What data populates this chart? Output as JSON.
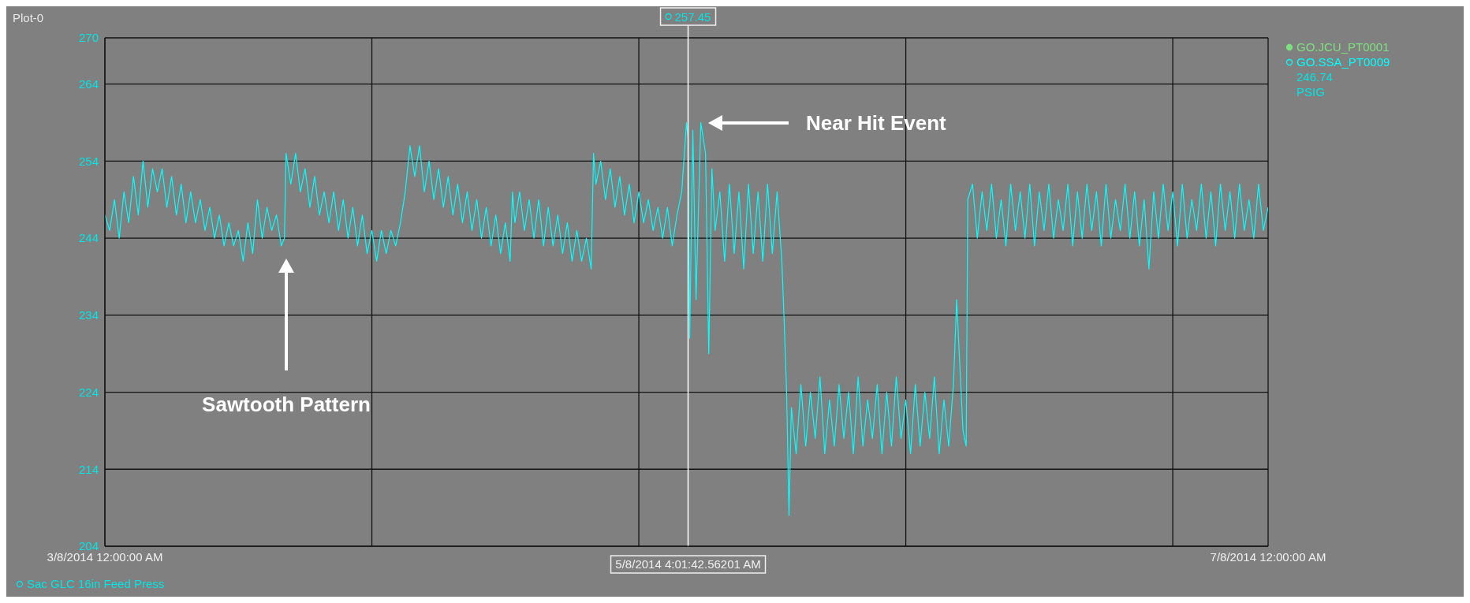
{
  "chart_data": {
    "type": "line",
    "title": "Plot-0",
    "ylabel": "PSIG",
    "annotations": [
      "257.45",
      "246.74",
      "Sac GLC 16in Feed Press",
      "Sawtooth Pattern",
      "Near Hit Event",
      "GO.JCU_PT0001"
    ],
    "x": [
      "2014-03-08T00:00",
      "2014-03-08T12:00",
      "2014-03-09T00:00",
      "2014-03-09T12:00",
      "2014-03-10T00:00",
      "2014-03-10T12:00",
      "2014-03-11T00:00",
      "2014-03-11T12:00",
      "2014-03-12T00:00",
      "2014-03-12T12:00",
      "2014-03-13T00:00",
      "2014-03-13T12:00",
      "2014-03-14T00:00",
      "2014-03-14T12:00",
      "2014-03-15T00:00",
      "2014-03-15T12:00",
      "2014-03-16T00:00",
      "2014-03-16T12:00",
      "2014-03-17T00:00",
      "2014-03-17T12:00",
      "2014-03-18T00:00",
      "2014-03-18T12:00",
      "2014-03-19T00:00",
      "2014-03-19T12:00",
      "2014-03-20T00:00",
      "2014-03-20T12:00",
      "2014-03-21T00:00",
      "2014-03-21T12:00",
      "2014-03-22T00:00",
      "2014-03-22T12:00",
      "2014-03-23T00:00",
      "2014-03-23T12:00",
      "2014-03-24T00:00",
      "2014-03-24T12:00",
      "2014-03-25T00:00",
      "2014-03-25T12:00",
      "2014-03-26T00:00",
      "2014-03-26T12:00",
      "2014-03-26T20:00",
      "2014-03-27T00:00",
      "2014-03-27T12:00",
      "2014-03-28T00:00",
      "2014-03-28T12:00",
      "2014-03-29T00:00",
      "2014-03-29T12:00",
      "2014-03-30T00:00",
      "2014-03-30T12:00",
      "2014-03-31T00:00",
      "2014-03-31T12:00",
      "2014-04-01T00:00",
      "2014-04-01T12:00",
      "2014-04-02T00:00",
      "2014-04-02T12:00",
      "2014-04-03T00:00",
      "2014-04-03T12:00",
      "2014-04-04T00:00",
      "2014-04-04T12:00",
      "2014-04-05T00:00",
      "2014-04-05T12:00",
      "2014-04-06T00:00",
      "2014-04-06T12:00",
      "2014-04-07T00:00",
      "2014-04-07T12:00",
      "2014-04-08T00:00",
      "2014-04-08T12:00",
      "2014-04-09T00:00",
      "2014-04-09T12:00",
      "2014-04-10T00:00",
      "2014-04-10T12:00",
      "2014-04-11T00:00",
      "2014-04-11T12:00",
      "2014-04-12T00:00",
      "2014-04-12T12:00",
      "2014-04-13T00:00",
      "2014-04-13T12:00",
      "2014-04-14T00:00",
      "2014-04-14T12:00",
      "2014-04-15T00:00",
      "2014-04-15T12:00",
      "2014-04-16T00:00",
      "2014-04-16T12:00",
      "2014-04-17T00:00",
      "2014-04-17T12:00",
      "2014-04-18T00:00",
      "2014-04-18T12:00",
      "2014-04-19T00:00",
      "2014-04-19T12:00",
      "2014-04-19T18:00",
      "2014-04-20T00:00",
      "2014-04-20T12:00",
      "2014-04-21T00:00",
      "2014-04-21T12:00",
      "2014-04-22T00:00",
      "2014-04-22T12:00",
      "2014-04-23T00:00",
      "2014-04-23T12:00",
      "2014-04-24T00:00",
      "2014-04-24T12:00",
      "2014-04-25T00:00",
      "2014-04-25T12:00",
      "2014-04-26T00:00",
      "2014-04-26T12:00",
      "2014-04-27T00:00",
      "2014-04-27T12:00",
      "2014-04-28T00:00",
      "2014-04-28T06:00",
      "2014-04-28T12:00",
      "2014-04-29T00:00",
      "2014-04-29T12:00",
      "2014-04-30T00:00",
      "2014-04-30T12:00",
      "2014-05-01T00:00",
      "2014-05-01T12:00",
      "2014-05-02T00:00",
      "2014-05-02T12:00",
      "2014-05-03T00:00",
      "2014-05-03T12:00",
      "2014-05-04T00:00",
      "2014-05-04T12:00",
      "2014-05-05T00:00",
      "2014-05-05T12:00",
      "2014-05-06T00:00",
      "2014-05-06T12:00",
      "2014-05-07T00:00",
      "2014-05-07T12:00",
      "2014-05-08T00:00",
      "2014-05-08T04:00",
      "2014-05-08T08:00",
      "2014-05-08T16:00",
      "2014-05-09T00:00",
      "2014-05-09T12:00",
      "2014-05-10T00:00",
      "2014-05-10T08:00",
      "2014-05-10T16:00",
      "2014-05-11T00:00",
      "2014-05-11T12:00",
      "2014-05-12T00:00",
      "2014-05-12T12:00",
      "2014-05-13T00:00",
      "2014-05-13T12:00",
      "2014-05-14T00:00",
      "2014-05-14T12:00",
      "2014-05-15T00:00",
      "2014-05-15T12:00",
      "2014-05-16T00:00",
      "2014-05-16T12:00",
      "2014-05-17T00:00",
      "2014-05-17T12:00",
      "2014-05-18T00:00",
      "2014-05-18T06:00",
      "2014-05-18T12:00",
      "2014-05-18T18:00",
      "2014-05-19T00:00",
      "2014-05-19T12:00",
      "2014-05-20T00:00",
      "2014-05-20T12:00",
      "2014-05-21T00:00",
      "2014-05-21T12:00",
      "2014-05-22T00:00",
      "2014-05-22T12:00",
      "2014-05-23T00:00",
      "2014-05-23T12:00",
      "2014-05-24T00:00",
      "2014-05-24T12:00",
      "2014-05-25T00:00",
      "2014-05-25T12:00",
      "2014-05-26T00:00",
      "2014-05-26T12:00",
      "2014-05-27T00:00",
      "2014-05-27T12:00",
      "2014-05-28T00:00",
      "2014-05-28T12:00",
      "2014-05-29T00:00",
      "2014-05-29T12:00",
      "2014-05-30T00:00",
      "2014-05-30T12:00",
      "2014-05-31T00:00",
      "2014-05-31T12:00",
      "2014-06-01T00:00",
      "2014-06-01T12:00",
      "2014-06-02T00:00",
      "2014-06-02T12:00",
      "2014-06-03T00:00",
      "2014-06-03T12:00",
      "2014-06-04T00:00",
      "2014-06-04T12:00",
      "2014-06-05T00:00",
      "2014-06-05T08:00",
      "2014-06-06T00:00",
      "2014-06-06T08:00",
      "2014-06-06T12:00",
      "2014-06-07T00:00",
      "2014-06-07T12:00",
      "2014-06-08T00:00",
      "2014-06-08T12:00",
      "2014-06-09T00:00",
      "2014-06-09T12:00",
      "2014-06-10T00:00",
      "2014-06-10T12:00",
      "2014-06-11T00:00",
      "2014-06-11T12:00",
      "2014-06-12T00:00",
      "2014-06-12T12:00",
      "2014-06-13T00:00",
      "2014-06-13T12:00",
      "2014-06-14T00:00",
      "2014-06-14T12:00",
      "2014-06-15T00:00",
      "2014-06-15T12:00",
      "2014-06-16T00:00",
      "2014-06-16T12:00",
      "2014-06-17T00:00",
      "2014-06-17T12:00",
      "2014-06-18T00:00",
      "2014-06-18T12:00",
      "2014-06-19T00:00",
      "2014-06-19T12:00",
      "2014-06-20T00:00",
      "2014-06-20T12:00",
      "2014-06-21T00:00",
      "2014-06-21T12:00",
      "2014-06-22T00:00",
      "2014-06-22T12:00",
      "2014-06-23T00:00",
      "2014-06-23T12:00",
      "2014-06-24T00:00",
      "2014-06-24T12:00",
      "2014-06-25T00:00",
      "2014-06-25T12:00",
      "2014-06-26T00:00",
      "2014-06-26T12:00",
      "2014-06-27T00:00",
      "2014-06-27T12:00",
      "2014-06-28T00:00",
      "2014-06-28T12:00",
      "2014-06-29T00:00",
      "2014-06-29T12:00",
      "2014-06-30T00:00",
      "2014-06-30T12:00",
      "2014-07-01T00:00",
      "2014-07-01T12:00",
      "2014-07-02T00:00",
      "2014-07-02T12:00",
      "2014-07-03T00:00",
      "2014-07-03T12:00",
      "2014-07-04T00:00",
      "2014-07-04T12:00",
      "2014-07-05T00:00",
      "2014-07-05T12:00",
      "2014-07-06T00:00",
      "2014-07-06T12:00",
      "2014-07-07T00:00",
      "2014-07-07T12:00",
      "2014-07-08T00:00"
    ],
    "series": [
      {
        "name": "GO.SSA_PT0009",
        "color": "#00ffff",
        "values": [
          247,
          245,
          249,
          244,
          250,
          246,
          252,
          247,
          254,
          248,
          253,
          250,
          253,
          248,
          252,
          247,
          251,
          246,
          250,
          246,
          249,
          245,
          248,
          244,
          247,
          243,
          246,
          243,
          245,
          241,
          246,
          242,
          249,
          244,
          248,
          245,
          247,
          243,
          244,
          255,
          251,
          255,
          250,
          253,
          248,
          252,
          247,
          250,
          246,
          250,
          245,
          249,
          244,
          248,
          243,
          247,
          242,
          245,
          241,
          245,
          242,
          245,
          243,
          246,
          250,
          256,
          252,
          256,
          250,
          254,
          249,
          253,
          248,
          252,
          247,
          251,
          246,
          250,
          245,
          249,
          244,
          248,
          243,
          247,
          242,
          246,
          241,
          250,
          246,
          250,
          245,
          249,
          244,
          249,
          243,
          248,
          243,
          247,
          242,
          246,
          241,
          245,
          241,
          244,
          240,
          255,
          251,
          254,
          249,
          253,
          248,
          252,
          247,
          251,
          246,
          250,
          246,
          249,
          245,
          248,
          244,
          248,
          243,
          247,
          250,
          259,
          257,
          231,
          258,
          236,
          259,
          255,
          229,
          253,
          245,
          250,
          241,
          251,
          242,
          250,
          240,
          251,
          242,
          250,
          241,
          251,
          242,
          250,
          241,
          233,
          224,
          208,
          222,
          216,
          225,
          217,
          224,
          218,
          226,
          216,
          223,
          217,
          225,
          218,
          224,
          216,
          226,
          217,
          223,
          218,
          225,
          216,
          224,
          217,
          226,
          218,
          223,
          216,
          225,
          217,
          224,
          218,
          226,
          216,
          223,
          217,
          225,
          236,
          219,
          217,
          249,
          251,
          244,
          250,
          245,
          251,
          244,
          249,
          243,
          251,
          245,
          250,
          244,
          251,
          243,
          250,
          245,
          251,
          244,
          249,
          245,
          251,
          243,
          250,
          244,
          251,
          245,
          250,
          243,
          251,
          244,
          249,
          245,
          251,
          244,
          250,
          243,
          249,
          240,
          250,
          244,
          251,
          245,
          250,
          243,
          251,
          244,
          249,
          245,
          251,
          244,
          250,
          243,
          251,
          245,
          250,
          244,
          251,
          245,
          249,
          244,
          251,
          245,
          248
        ]
      }
    ],
    "xlim": [
      "2014-03-08",
      "2014-07-08"
    ],
    "xticks": [
      {
        "value": "2014-03-08",
        "label": "3/8/2014 12:00:00 AM"
      },
      {
        "value": "2014-04-05",
        "label": null
      },
      {
        "value": "2014-05-03",
        "label": null
      },
      {
        "value": "2014-05-31",
        "label": null
      },
      {
        "value": "2014-06-28",
        "label": null
      },
      {
        "value": "2014-07-08",
        "label": "7/8/2014 12:00:00 AM"
      }
    ],
    "ylim": [
      204,
      270
    ],
    "yticks": [
      204,
      214,
      224,
      234,
      244,
      254,
      264,
      270
    ],
    "ref_lines": [
      {
        "axis": "x",
        "value": "2014-05-08T04:01",
        "label": "5/8/2014 4:01:42.56201 AM",
        "color": "#ffffff"
      }
    ],
    "grid": true,
    "legend": "top right",
    "marker": "none",
    "line_style": "solid"
  }
}
